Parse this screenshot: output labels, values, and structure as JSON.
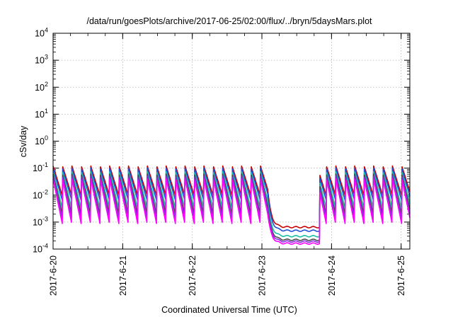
{
  "chart_data": {
    "type": "line",
    "title": "/data/run/goesPlots/archive/2017-06-25/02:00/flux/../bryn/5daysMars.plot",
    "xlabel": "Coordinated Universal Time (UTC)",
    "ylabel": "cSv/day",
    "yscale": "log",
    "ylim": [
      0.0001,
      10000
    ],
    "xlim": [
      "2017-06-20T00:00",
      "2017-06-25T03:00"
    ],
    "grid": true,
    "legend": "none",
    "x_ticks": [
      "2017-6-20",
      "2017-6-21",
      "2017-6-22",
      "2017-6-23",
      "2017-6-24",
      "2017-6-25"
    ],
    "y_ticks": [
      {
        "base": "10",
        "exp": "-4"
      },
      {
        "base": "10",
        "exp": "-3"
      },
      {
        "base": "10",
        "exp": "-2"
      },
      {
        "base": "10",
        "exp": "-1"
      },
      {
        "base": "10",
        "exp": "0"
      },
      {
        "base": "10",
        "exp": "1"
      },
      {
        "base": "10",
        "exp": "2"
      },
      {
        "base": "10",
        "exp": "3"
      },
      {
        "base": "10",
        "exp": "4"
      }
    ],
    "orbit_period_hours": 3.25,
    "gap_start": "2017-06-23T02:00",
    "gap_end": "2017-06-23T20:00",
    "series": [
      {
        "color": "#cc0000",
        "peak": 0.12,
        "trough": 0.009,
        "quiet": 0.00065
      },
      {
        "color": "#1f4fd8",
        "peak": 0.1,
        "trough": 0.006,
        "quiet": 0.00048
      },
      {
        "color": "#1bbfa8",
        "peak": 0.075,
        "trough": 0.003,
        "quiet": 0.0003
      },
      {
        "color": "#4a4a4a",
        "peak": 0.06,
        "trough": 0.0018,
        "quiet": 0.00022
      },
      {
        "color": "#8a2be2",
        "peak": 0.05,
        "trough": 0.0012,
        "quiet": 0.00019
      },
      {
        "color": "#ff00ff",
        "peak": 0.04,
        "trough": 0.0008,
        "quiet": 0.00016
      }
    ]
  }
}
